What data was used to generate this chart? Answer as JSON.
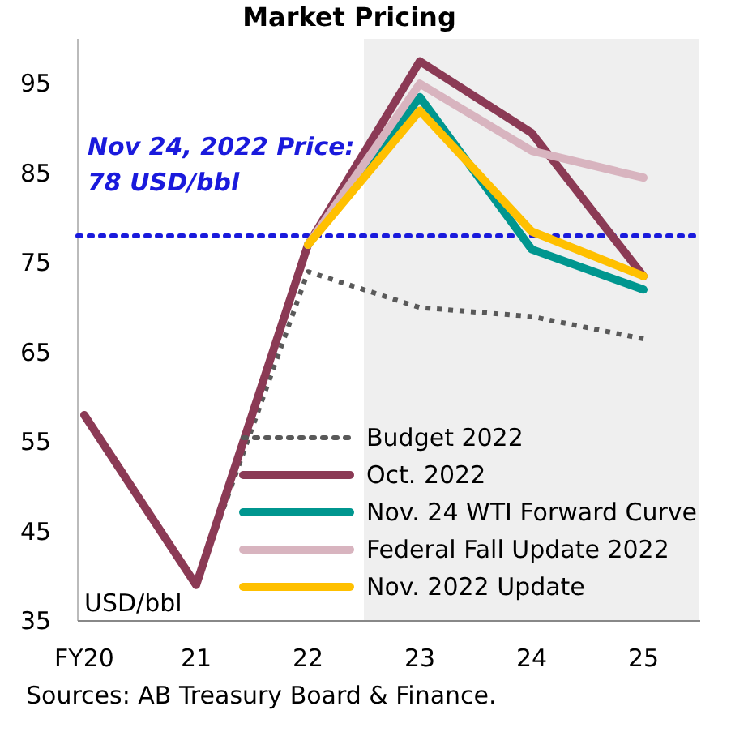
{
  "chart_data": {
    "type": "line",
    "title": "Market Pricing",
    "ylabel": "USD/bbl",
    "categories": [
      "FY20",
      "21",
      "22",
      "23",
      "24",
      "25"
    ],
    "ylim": [
      35,
      100
    ],
    "yticks": [
      35,
      45,
      55,
      65,
      75,
      85,
      95
    ],
    "series": [
      {
        "name": "Budget 2022",
        "color": "#595959",
        "line_style": "dotted",
        "values": [
          null,
          39,
          74,
          70,
          69,
          66.5
        ]
      },
      {
        "name": "Oct. 2022",
        "color": "#8b3a55",
        "values": [
          58,
          39,
          77,
          97.5,
          89.5,
          73.5
        ]
      },
      {
        "name": "Nov. 24 WTI Forward Curve",
        "color": "#00968f",
        "values": [
          null,
          null,
          77,
          93.5,
          76.5,
          72
        ]
      },
      {
        "name": "Federal Fall Update 2022",
        "color": "#d8b4bf",
        "values": [
          null,
          null,
          77,
          95,
          87.5,
          84.5
        ]
      },
      {
        "name": "Nov. 2022 Update",
        "color": "#ffc000",
        "values": [
          null,
          null,
          77,
          92,
          78.5,
          73.5
        ]
      }
    ],
    "ref_lines": [
      {
        "axis": "y",
        "value": 78,
        "label": "Nov 24, 2022 Price:\n78 USD/bbl",
        "color": "#1a1adc",
        "line_style": "dotted"
      }
    ],
    "bands": [
      {
        "axis": "x",
        "from": "23",
        "to": "25",
        "color": "#efefef"
      }
    ],
    "legend": "bottom right",
    "grid": false,
    "marker": "none",
    "annotations": [
      "Sources: AB Treasury Board & Finance."
    ]
  }
}
